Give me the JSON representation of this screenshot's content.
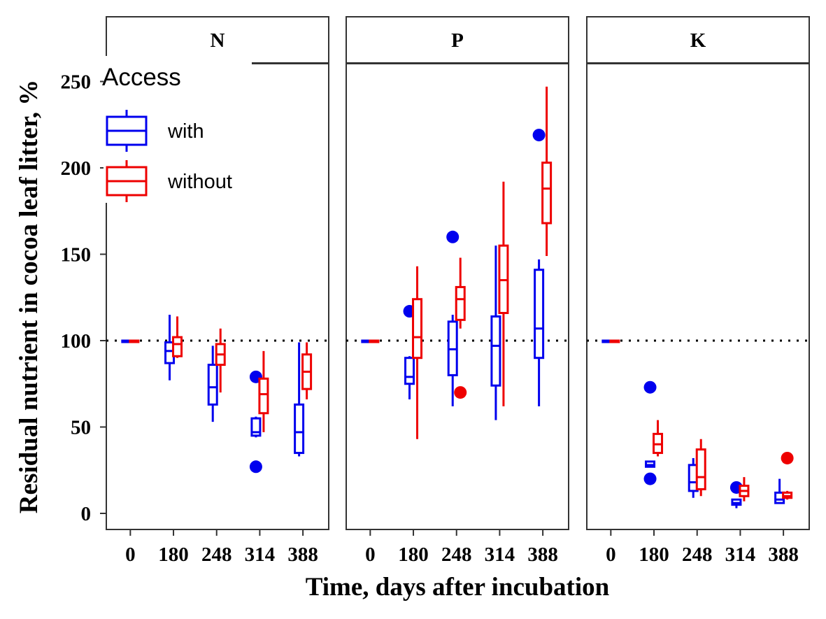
{
  "chart_data": {
    "type": "boxplot",
    "facet_by": "Nutrient",
    "x_label": "Time, days after incubation",
    "y_label": "Residual nutrient in cocoa leaf litter, %",
    "x_categories": [
      "0",
      "180",
      "248",
      "314",
      "388"
    ],
    "y_ticks": [
      0,
      50,
      100,
      150,
      200,
      250
    ],
    "ylim": [
      -10,
      260
    ],
    "reference_line": {
      "y": 100,
      "style": "dotted"
    },
    "legend": {
      "title": "Access",
      "placement": "top-left",
      "entries": [
        {
          "label": "with",
          "color": "#0000ee"
        },
        {
          "label": "without",
          "color": "#ee0000"
        }
      ]
    },
    "facets": [
      {
        "label": "N",
        "series": [
          {
            "name": "with",
            "color": "#0000ee",
            "boxes": [
              {
                "x": "0",
                "min": 100,
                "q1": 100,
                "median": 100,
                "q3": 100,
                "max": 100,
                "outliers": []
              },
              {
                "x": "180",
                "min": 77,
                "q1": 87,
                "median": 94,
                "q3": 99,
                "max": 115,
                "outliers": []
              },
              {
                "x": "248",
                "min": 53,
                "q1": 63,
                "median": 73,
                "q3": 86,
                "max": 97,
                "outliers": []
              },
              {
                "x": "314",
                "min": 44,
                "q1": 45,
                "median": 47,
                "q3": 55,
                "max": 56,
                "outliers": [
                  79,
                  27
                ]
              },
              {
                "x": "388",
                "min": 33,
                "q1": 35,
                "median": 47,
                "q3": 63,
                "max": 99,
                "outliers": []
              }
            ]
          },
          {
            "name": "without",
            "color": "#ee0000",
            "boxes": [
              {
                "x": "0",
                "min": 100,
                "q1": 100,
                "median": 100,
                "q3": 100,
                "max": 100,
                "outliers": []
              },
              {
                "x": "180",
                "min": 90,
                "q1": 91,
                "median": 98,
                "q3": 102,
                "max": 114,
                "outliers": []
              },
              {
                "x": "248",
                "min": 70,
                "q1": 86,
                "median": 92,
                "q3": 98,
                "max": 107,
                "outliers": []
              },
              {
                "x": "314",
                "min": 47,
                "q1": 58,
                "median": 69,
                "q3": 78,
                "max": 94,
                "outliers": []
              },
              {
                "x": "388",
                "min": 66,
                "q1": 72,
                "median": 82,
                "q3": 92,
                "max": 99,
                "outliers": []
              }
            ]
          }
        ]
      },
      {
        "label": "P",
        "series": [
          {
            "name": "with",
            "color": "#0000ee",
            "boxes": [
              {
                "x": "0",
                "min": 100,
                "q1": 100,
                "median": 100,
                "q3": 100,
                "max": 100,
                "outliers": []
              },
              {
                "x": "180",
                "min": 66,
                "q1": 75,
                "median": 79,
                "q3": 90,
                "max": 91,
                "outliers": [
                  117
                ]
              },
              {
                "x": "248",
                "min": 62,
                "q1": 80,
                "median": 95,
                "q3": 111,
                "max": 115,
                "outliers": [
                  160
                ]
              },
              {
                "x": "314",
                "min": 54,
                "q1": 74,
                "median": 97,
                "q3": 114,
                "max": 155,
                "outliers": []
              },
              {
                "x": "388",
                "min": 62,
                "q1": 90,
                "median": 107,
                "q3": 141,
                "max": 147,
                "outliers": [
                  219
                ]
              }
            ]
          },
          {
            "name": "without",
            "color": "#ee0000",
            "boxes": [
              {
                "x": "0",
                "min": 100,
                "q1": 100,
                "median": 100,
                "q3": 100,
                "max": 100,
                "outliers": []
              },
              {
                "x": "180",
                "min": 43,
                "q1": 90,
                "median": 102,
                "q3": 124,
                "max": 143,
                "outliers": []
              },
              {
                "x": "248",
                "min": 107,
                "q1": 112,
                "median": 124,
                "q3": 131,
                "max": 148,
                "outliers": [
                  70
                ]
              },
              {
                "x": "314",
                "min": 62,
                "q1": 116,
                "median": 135,
                "q3": 155,
                "max": 192,
                "outliers": []
              },
              {
                "x": "388",
                "min": 149,
                "q1": 168,
                "median": 188,
                "q3": 203,
                "max": 247,
                "outliers": []
              }
            ]
          }
        ]
      },
      {
        "label": "K",
        "series": [
          {
            "name": "with",
            "color": "#0000ee",
            "boxes": [
              {
                "x": "0",
                "min": 100,
                "q1": 100,
                "median": 100,
                "q3": 100,
                "max": 100,
                "outliers": []
              },
              {
                "x": "180",
                "min": 27,
                "q1": 27,
                "median": 28,
                "q3": 30,
                "max": 30,
                "outliers": [
                  73,
                  20
                ]
              },
              {
                "x": "248",
                "min": 9,
                "q1": 13,
                "median": 18,
                "q3": 28,
                "max": 32,
                "outliers": []
              },
              {
                "x": "314",
                "min": 3,
                "q1": 5,
                "median": 6,
                "q3": 8,
                "max": 8,
                "outliers": [
                  15
                ]
              },
              {
                "x": "388",
                "min": 6,
                "q1": 6,
                "median": 8,
                "q3": 12,
                "max": 20,
                "outliers": []
              }
            ]
          },
          {
            "name": "without",
            "color": "#ee0000",
            "boxes": [
              {
                "x": "0",
                "min": 100,
                "q1": 100,
                "median": 100,
                "q3": 100,
                "max": 100,
                "outliers": []
              },
              {
                "x": "180",
                "min": 33,
                "q1": 35,
                "median": 40,
                "q3": 46,
                "max": 54,
                "outliers": []
              },
              {
                "x": "248",
                "min": 10,
                "q1": 14,
                "median": 21,
                "q3": 37,
                "max": 43,
                "outliers": []
              },
              {
                "x": "314",
                "min": 7,
                "q1": 10,
                "median": 13,
                "q3": 16,
                "max": 21,
                "outliers": []
              },
              {
                "x": "388",
                "min": 8,
                "q1": 9,
                "median": 10,
                "q3": 12,
                "max": 13,
                "outliers": [
                  32
                ]
              }
            ]
          }
        ]
      }
    ]
  }
}
